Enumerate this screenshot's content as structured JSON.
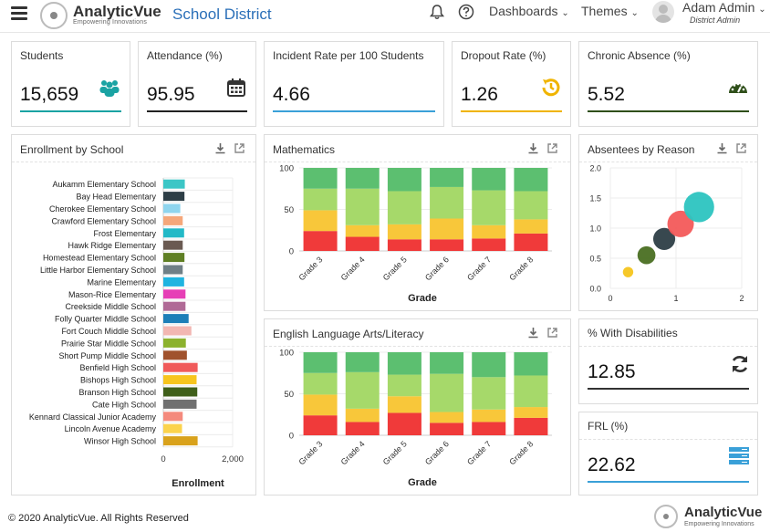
{
  "header": {
    "brand": "AnalyticVue",
    "tagline": "Empowering Innovations",
    "district": "School District",
    "menu_dashboards": "Dashboards",
    "menu_themes": "Themes",
    "user_name": "Adam Admin",
    "user_role": "District Admin"
  },
  "kpis": {
    "students": {
      "title": "Students",
      "value": "15,659",
      "color": "#1aa3a3"
    },
    "attendance": {
      "title": "Attendance (%)",
      "value": "95.95",
      "color": "#222222"
    },
    "incident": {
      "title": "Incident Rate per 100 Students",
      "value": "4.66",
      "color": "#3aa0d8"
    },
    "dropout": {
      "title": "Dropout Rate (%)",
      "value": "1.26",
      "color": "#f0b400"
    },
    "chronic": {
      "title": "Chronic Absence (%)",
      "value": "5.52",
      "color": "#2f4f1a"
    },
    "disabilities": {
      "title": "% With Disabilities",
      "value": "12.85",
      "color": "#333333"
    },
    "frl": {
      "title": "FRL (%)",
      "value": "22.62",
      "color": "#3aa0d8"
    }
  },
  "panels": {
    "enrollment": "Enrollment by School",
    "math": "Mathematics",
    "ela": "English Language Arts/Literacy",
    "absentees": "Absentees by Reason"
  },
  "footer": {
    "copyright": "© 2020 AnalyticVue. All Rights Reserved",
    "brand": "AnalyticVue",
    "tagline": "Empowering Innovations"
  },
  "chart_data": [
    {
      "type": "bar",
      "orientation": "horizontal",
      "xlabel": "Enrollment",
      "xlim": [
        0,
        2000
      ],
      "xticks": [
        "0",
        "2,000"
      ],
      "categories": [
        "Aukamm Elementary School",
        "Bay Head Elementary",
        "Cherokee Elementary School",
        "Crawford Elementary School",
        "Frost Elementary",
        "Hawk Ridge Elementary",
        "Homestead Elementary School",
        "Little Harbor Elementary School",
        "Marine Elementary",
        "Mason-Rice Elementary",
        "Creekside Middle School",
        "Folly Quarter Middle School",
        "Fort Couch Middle School",
        "Prairie Star Middle School",
        "Short Pump Middle School",
        "Benfield High School",
        "Bishops High School",
        "Branson High School",
        "Cate High School",
        "Kennard Classical Junior Academy",
        "Lincoln Avenue Academy",
        "Winsor High School"
      ],
      "values": [
        620,
        610,
        490,
        560,
        600,
        560,
        610,
        560,
        600,
        640,
        640,
        730,
        810,
        650,
        680,
        990,
        960,
        980,
        960,
        560,
        540,
        990
      ],
      "colors": [
        "#3cc6c6",
        "#2d3e46",
        "#8fd5ee",
        "#f5a77a",
        "#22b9c7",
        "#6a5a52",
        "#5f7f24",
        "#6f7f86",
        "#1fb4e0",
        "#e63fb6",
        "#b06a96",
        "#1c7fb8",
        "#f2b7b2",
        "#8cb22e",
        "#a0522d",
        "#f05a5a",
        "#f7c51e",
        "#3f5f1a",
        "#707070",
        "#f48a7d",
        "#fbd34d",
        "#d9a21c"
      ]
    },
    {
      "type": "bar",
      "stacked": true,
      "title": "Mathematics",
      "xlabel": "Grade",
      "ylim": [
        0,
        100
      ],
      "yticks": [
        "0",
        "50",
        "100"
      ],
      "categories": [
        "Grade 3",
        "Grade 4",
        "Grade 5",
        "Grade 6",
        "Grade 7",
        "Grade 8"
      ],
      "series": [
        {
          "color": "#f03a3a",
          "values": [
            24,
            17,
            14,
            14,
            15,
            21
          ]
        },
        {
          "color": "#f8c73a",
          "values": [
            25,
            14,
            18,
            25,
            16,
            17
          ]
        },
        {
          "color": "#a6d96a",
          "values": [
            26,
            44,
            40,
            38,
            42,
            34
          ]
        },
        {
          "color": "#5cbf70",
          "values": [
            25,
            25,
            28,
            23,
            27,
            28
          ]
        }
      ]
    },
    {
      "type": "bar",
      "stacked": true,
      "title": "English Language Arts/Literacy",
      "xlabel": "Grade",
      "ylim": [
        0,
        100
      ],
      "yticks": [
        "0",
        "50",
        "100"
      ],
      "categories": [
        "Grade 3",
        "Grade 4",
        "Grade 5",
        "Grade 6",
        "Grade 7",
        "Grade 8"
      ],
      "series": [
        {
          "color": "#f03a3a",
          "values": [
            24,
            16,
            27,
            15,
            16,
            21
          ]
        },
        {
          "color": "#f8c73a",
          "values": [
            25,
            16,
            20,
            13,
            15,
            13
          ]
        },
        {
          "color": "#a6d96a",
          "values": [
            26,
            44,
            26,
            46,
            39,
            38
          ]
        },
        {
          "color": "#5cbf70",
          "values": [
            25,
            24,
            27,
            26,
            30,
            28
          ]
        }
      ]
    },
    {
      "type": "scatter",
      "bubble": true,
      "title": "Absentees by Reason",
      "xlim": [
        0,
        2
      ],
      "ylim": [
        0,
        2
      ],
      "xticks": [
        "0",
        "1",
        "2"
      ],
      "yticks": [
        "0.0",
        "0.5",
        "1.0",
        "1.5",
        "2.0"
      ],
      "points": [
        {
          "x": 0.27,
          "y": 0.27,
          "r": 0.1,
          "color": "#f5c51e"
        },
        {
          "x": 0.55,
          "y": 0.55,
          "r": 0.3,
          "color": "#4a6f22"
        },
        {
          "x": 0.82,
          "y": 0.82,
          "r": 0.45,
          "color": "#2d3e46"
        },
        {
          "x": 1.07,
          "y": 1.07,
          "r": 0.65,
          "color": "#f35a5a"
        },
        {
          "x": 1.35,
          "y": 1.35,
          "r": 0.85,
          "color": "#2cc4c0"
        }
      ]
    }
  ]
}
